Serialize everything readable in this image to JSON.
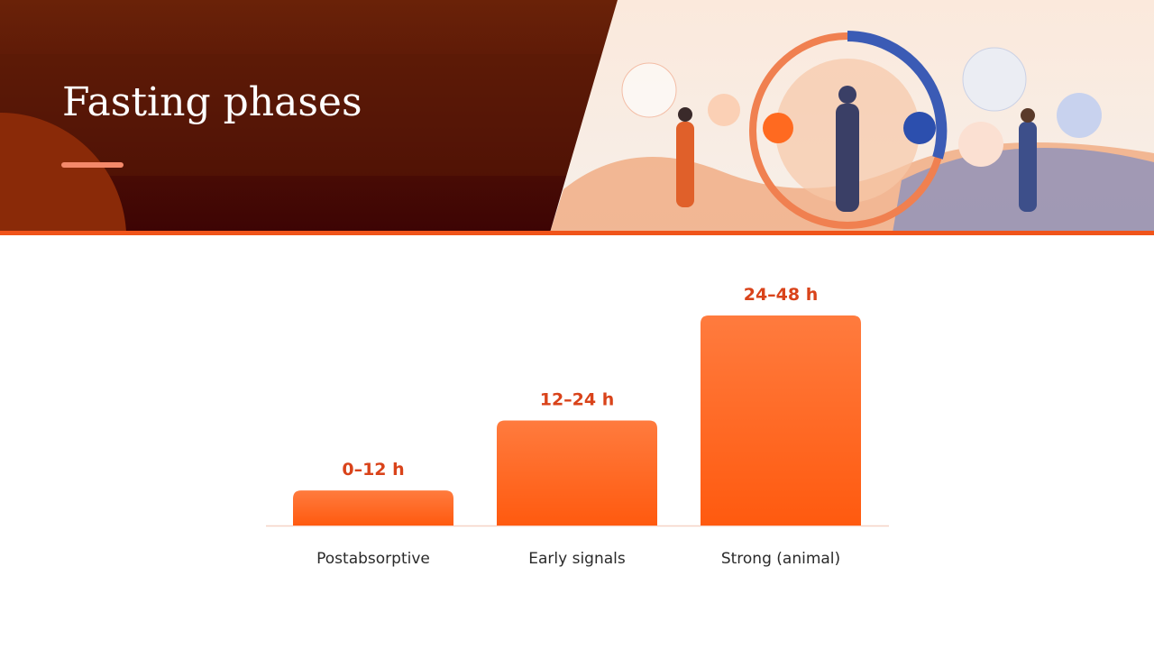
{
  "chart_data": {
    "type": "bar",
    "title": "Fasting phases",
    "categories": [
      "Postabsorptive",
      "Early signals",
      "Strong (animal)"
    ],
    "values": [
      1,
      3,
      6
    ],
    "bar_labels": [
      "0–12 h",
      "12–24 h",
      "24–48 h"
    ],
    "color": "#ff5f17",
    "ylim": [
      0,
      6
    ]
  }
}
